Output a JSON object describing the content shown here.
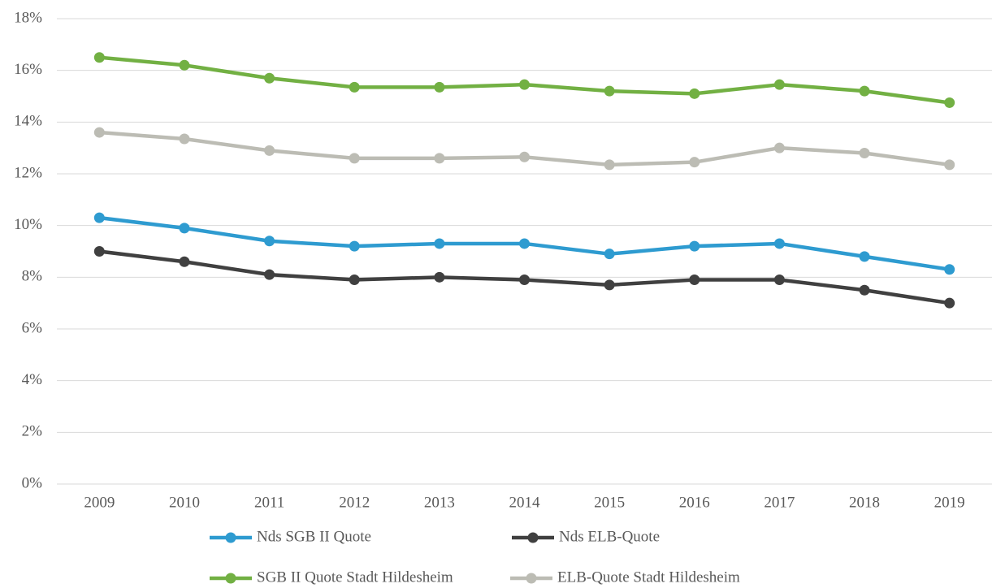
{
  "chart_data": {
    "type": "line",
    "categories": [
      "2009",
      "2010",
      "2011",
      "2012",
      "2013",
      "2014",
      "2015",
      "2016",
      "2017",
      "2018",
      "2019"
    ],
    "series": [
      {
        "name": "Nds SGB II Quote",
        "color": "#2e9bd0",
        "values": [
          10.3,
          9.9,
          9.4,
          9.2,
          9.3,
          9.3,
          8.9,
          9.2,
          9.3,
          8.8,
          8.3
        ]
      },
      {
        "name": "Nds ELB-Quote",
        "color": "#404040",
        "values": [
          9.0,
          8.6,
          8.1,
          7.9,
          8.0,
          7.9,
          7.7,
          7.9,
          7.9,
          7.5,
          7.0
        ]
      },
      {
        "name": "SGB II Quote Stadt Hildesheim",
        "color": "#72b043",
        "values": [
          16.5,
          16.2,
          15.7,
          15.35,
          15.35,
          15.45,
          15.2,
          15.1,
          15.45,
          15.2,
          14.75
        ]
      },
      {
        "name": "ELB-Quote Stadt Hildesheim",
        "color": "#bcbcb4",
        "values": [
          13.6,
          13.35,
          12.9,
          12.6,
          12.6,
          12.65,
          12.35,
          12.45,
          13.0,
          12.8,
          12.35
        ]
      }
    ],
    "ylim": [
      0,
      18
    ],
    "yticks": [
      {
        "value": 0,
        "label": "0%"
      },
      {
        "value": 2,
        "label": "2%"
      },
      {
        "value": 4,
        "label": "4%"
      },
      {
        "value": 6,
        "label": "6%"
      },
      {
        "value": 8,
        "label": "8%"
      },
      {
        "value": 10,
        "label": "10%"
      },
      {
        "value": 12,
        "label": "12%"
      },
      {
        "value": 14,
        "label": "14%"
      },
      {
        "value": 16,
        "label": "16%"
      },
      {
        "value": 18,
        "label": "18%"
      }
    ],
    "grid": true,
    "legend": "bottom"
  }
}
